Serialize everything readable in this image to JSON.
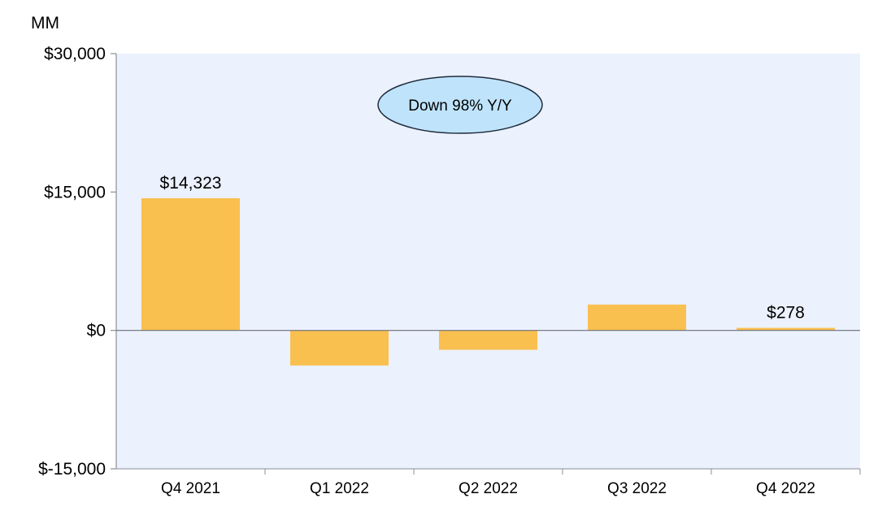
{
  "chart_data": {
    "type": "bar",
    "unit_label": "MM",
    "categories": [
      "Q4 2021",
      "Q1 2022",
      "Q2 2022",
      "Q3 2022",
      "Q4 2022"
    ],
    "values": [
      14323,
      -3800,
      -2100,
      2800,
      278
    ],
    "data_labels": [
      "$14,323",
      "",
      "",
      "",
      "$278"
    ],
    "ylim": [
      -15000,
      30000
    ],
    "yticks": [
      30000,
      15000,
      0,
      -15000
    ],
    "ytick_labels": [
      "$30,000",
      "$15,000",
      "$0",
      "$-15,000"
    ],
    "annotation": "Down 98% Y/Y",
    "grid": false,
    "colors": {
      "bar": "#F9BF4F",
      "plot_background": "#EBF1FD",
      "callout_fill": "#BFE3FA",
      "callout_stroke": "#1F2D3D",
      "axis": "#8A8F96"
    }
  }
}
